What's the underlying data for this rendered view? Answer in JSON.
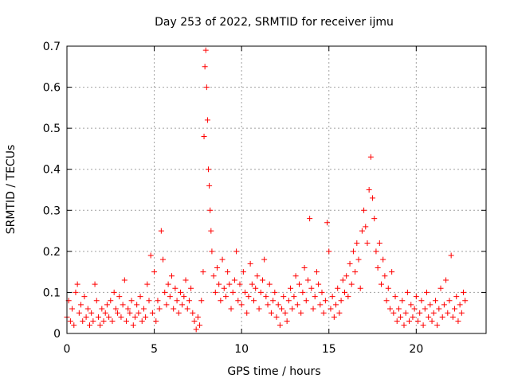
{
  "chart_data": {
    "type": "scatter",
    "title": "Day 253 of 2022, SRMTID for receiver ijmu",
    "xlabel": "GPS time / hours",
    "ylabel": "SRMTID / TECUs",
    "xlim": [
      0,
      24
    ],
    "ylim": [
      0,
      0.7
    ],
    "xticks": [
      0,
      5,
      10,
      15,
      20
    ],
    "xtick_labels": [
      "0",
      "5",
      "10",
      "15",
      "20"
    ],
    "yticks": [
      0,
      0.1,
      0.2,
      0.3,
      0.4,
      0.5,
      0.6,
      0.7
    ],
    "ytick_labels": [
      "0",
      "0.1",
      "0.2",
      "0.3",
      "0.4",
      "0.5",
      "0.6",
      "0.7"
    ],
    "grid": true,
    "marker": "+",
    "color": "#ff0000",
    "series": [
      {
        "name": "SRMTID",
        "points": [
          [
            0.0,
            0.04
          ],
          [
            0.1,
            0.08
          ],
          [
            0.2,
            0.03
          ],
          [
            0.3,
            0.06
          ],
          [
            0.4,
            0.02
          ],
          [
            0.5,
            0.1
          ],
          [
            0.6,
            0.12
          ],
          [
            0.7,
            0.05
          ],
          [
            0.8,
            0.07
          ],
          [
            0.9,
            0.03
          ],
          [
            1.0,
            0.09
          ],
          [
            1.1,
            0.04
          ],
          [
            1.2,
            0.06
          ],
          [
            1.3,
            0.02
          ],
          [
            1.4,
            0.05
          ],
          [
            1.5,
            0.03
          ],
          [
            1.6,
            0.12
          ],
          [
            1.7,
            0.08
          ],
          [
            1.8,
            0.04
          ],
          [
            1.9,
            0.02
          ],
          [
            2.0,
            0.06
          ],
          [
            2.1,
            0.03
          ],
          [
            2.2,
            0.05
          ],
          [
            2.3,
            0.07
          ],
          [
            2.4,
            0.04
          ],
          [
            2.5,
            0.08
          ],
          [
            2.6,
            0.03
          ],
          [
            2.7,
            0.1
          ],
          [
            2.8,
            0.06
          ],
          [
            2.9,
            0.05
          ],
          [
            3.0,
            0.09
          ],
          [
            3.1,
            0.04
          ],
          [
            3.2,
            0.07
          ],
          [
            3.3,
            0.13
          ],
          [
            3.4,
            0.03
          ],
          [
            3.5,
            0.06
          ],
          [
            3.6,
            0.05
          ],
          [
            3.7,
            0.08
          ],
          [
            3.8,
            0.02
          ],
          [
            3.9,
            0.04
          ],
          [
            4.0,
            0.07
          ],
          [
            4.1,
            0.05
          ],
          [
            4.2,
            0.09
          ],
          [
            4.3,
            0.03
          ],
          [
            4.4,
            0.06
          ],
          [
            4.5,
            0.04
          ],
          [
            4.6,
            0.12
          ],
          [
            4.7,
            0.08
          ],
          [
            4.8,
            0.19
          ],
          [
            4.9,
            0.05
          ],
          [
            5.0,
            0.15
          ],
          [
            5.1,
            0.03
          ],
          [
            5.2,
            0.08
          ],
          [
            5.3,
            0.06
          ],
          [
            5.4,
            0.25
          ],
          [
            5.5,
            0.18
          ],
          [
            5.6,
            0.1
          ],
          [
            5.7,
            0.07
          ],
          [
            5.8,
            0.12
          ],
          [
            5.9,
            0.09
          ],
          [
            6.0,
            0.14
          ],
          [
            6.1,
            0.06
          ],
          [
            6.2,
            0.11
          ],
          [
            6.3,
            0.08
          ],
          [
            6.4,
            0.05
          ],
          [
            6.5,
            0.1
          ],
          [
            6.6,
            0.07
          ],
          [
            6.7,
            0.09
          ],
          [
            6.8,
            0.13
          ],
          [
            6.9,
            0.06
          ],
          [
            7.0,
            0.08
          ],
          [
            7.1,
            0.11
          ],
          [
            7.2,
            0.05
          ],
          [
            7.3,
            0.03
          ],
          [
            7.4,
            0.01
          ],
          [
            7.5,
            0.04
          ],
          [
            7.6,
            0.02
          ],
          [
            7.7,
            0.08
          ],
          [
            7.8,
            0.15
          ],
          [
            7.85,
            0.48
          ],
          [
            7.9,
            0.65
          ],
          [
            7.95,
            0.69
          ],
          [
            8.0,
            0.6
          ],
          [
            8.05,
            0.52
          ],
          [
            8.1,
            0.4
          ],
          [
            8.15,
            0.36
          ],
          [
            8.2,
            0.3
          ],
          [
            8.25,
            0.25
          ],
          [
            8.3,
            0.2
          ],
          [
            8.4,
            0.14
          ],
          [
            8.5,
            0.1
          ],
          [
            8.6,
            0.16
          ],
          [
            8.7,
            0.12
          ],
          [
            8.8,
            0.08
          ],
          [
            8.9,
            0.18
          ],
          [
            9.0,
            0.11
          ],
          [
            9.1,
            0.09
          ],
          [
            9.2,
            0.15
          ],
          [
            9.3,
            0.12
          ],
          [
            9.4,
            0.06
          ],
          [
            9.5,
            0.1
          ],
          [
            9.6,
            0.13
          ],
          [
            9.7,
            0.2
          ],
          [
            9.8,
            0.08
          ],
          [
            9.9,
            0.12
          ],
          [
            10.0,
            0.07
          ],
          [
            10.1,
            0.15
          ],
          [
            10.2,
            0.1
          ],
          [
            10.3,
            0.05
          ],
          [
            10.4,
            0.09
          ],
          [
            10.5,
            0.17
          ],
          [
            10.6,
            0.12
          ],
          [
            10.7,
            0.08
          ],
          [
            10.8,
            0.11
          ],
          [
            10.9,
            0.14
          ],
          [
            11.0,
            0.06
          ],
          [
            11.1,
            0.1
          ],
          [
            11.2,
            0.13
          ],
          [
            11.3,
            0.18
          ],
          [
            11.4,
            0.09
          ],
          [
            11.5,
            0.07
          ],
          [
            11.6,
            0.12
          ],
          [
            11.7,
            0.05
          ],
          [
            11.8,
            0.08
          ],
          [
            11.9,
            0.1
          ],
          [
            12.0,
            0.04
          ],
          [
            12.1,
            0.07
          ],
          [
            12.2,
            0.02
          ],
          [
            12.3,
            0.06
          ],
          [
            12.4,
            0.09
          ],
          [
            12.5,
            0.05
          ],
          [
            12.6,
            0.03
          ],
          [
            12.7,
            0.08
          ],
          [
            12.8,
            0.11
          ],
          [
            12.9,
            0.06
          ],
          [
            13.0,
            0.09
          ],
          [
            13.1,
            0.14
          ],
          [
            13.2,
            0.07
          ],
          [
            13.3,
            0.12
          ],
          [
            13.4,
            0.05
          ],
          [
            13.5,
            0.1
          ],
          [
            13.6,
            0.16
          ],
          [
            13.7,
            0.08
          ],
          [
            13.8,
            0.13
          ],
          [
            13.9,
            0.28
          ],
          [
            14.0,
            0.11
          ],
          [
            14.1,
            0.06
          ],
          [
            14.2,
            0.09
          ],
          [
            14.3,
            0.15
          ],
          [
            14.4,
            0.12
          ],
          [
            14.5,
            0.07
          ],
          [
            14.6,
            0.1
          ],
          [
            14.7,
            0.05
          ],
          [
            14.8,
            0.08
          ],
          [
            14.9,
            0.27
          ],
          [
            15.0,
            0.2
          ],
          [
            15.1,
            0.06
          ],
          [
            15.2,
            0.09
          ],
          [
            15.3,
            0.04
          ],
          [
            15.4,
            0.07
          ],
          [
            15.5,
            0.11
          ],
          [
            15.6,
            0.05
          ],
          [
            15.7,
            0.08
          ],
          [
            15.8,
            0.13
          ],
          [
            15.9,
            0.1
          ],
          [
            16.0,
            0.14
          ],
          [
            16.1,
            0.09
          ],
          [
            16.2,
            0.17
          ],
          [
            16.3,
            0.12
          ],
          [
            16.4,
            0.2
          ],
          [
            16.5,
            0.15
          ],
          [
            16.6,
            0.22
          ],
          [
            16.7,
            0.18
          ],
          [
            16.8,
            0.11
          ],
          [
            16.9,
            0.25
          ],
          [
            17.0,
            0.3
          ],
          [
            17.1,
            0.26
          ],
          [
            17.2,
            0.22
          ],
          [
            17.3,
            0.35
          ],
          [
            17.4,
            0.43
          ],
          [
            17.5,
            0.33
          ],
          [
            17.6,
            0.28
          ],
          [
            17.7,
            0.2
          ],
          [
            17.8,
            0.16
          ],
          [
            17.9,
            0.22
          ],
          [
            18.0,
            0.12
          ],
          [
            18.1,
            0.18
          ],
          [
            18.2,
            0.14
          ],
          [
            18.3,
            0.08
          ],
          [
            18.4,
            0.11
          ],
          [
            18.5,
            0.06
          ],
          [
            18.6,
            0.15
          ],
          [
            18.7,
            0.05
          ],
          [
            18.8,
            0.09
          ],
          [
            18.9,
            0.03
          ],
          [
            19.0,
            0.06
          ],
          [
            19.1,
            0.04
          ],
          [
            19.2,
            0.08
          ],
          [
            19.3,
            0.02
          ],
          [
            19.4,
            0.05
          ],
          [
            19.5,
            0.1
          ],
          [
            19.6,
            0.03
          ],
          [
            19.7,
            0.07
          ],
          [
            19.8,
            0.04
          ],
          [
            19.9,
            0.06
          ],
          [
            20.0,
            0.09
          ],
          [
            20.1,
            0.03
          ],
          [
            20.2,
            0.05
          ],
          [
            20.3,
            0.08
          ],
          [
            20.4,
            0.02
          ],
          [
            20.5,
            0.06
          ],
          [
            20.6,
            0.1
          ],
          [
            20.7,
            0.04
          ],
          [
            20.8,
            0.07
          ],
          [
            20.9,
            0.03
          ],
          [
            21.0,
            0.05
          ],
          [
            21.1,
            0.08
          ],
          [
            21.2,
            0.02
          ],
          [
            21.3,
            0.06
          ],
          [
            21.4,
            0.11
          ],
          [
            21.5,
            0.04
          ],
          [
            21.6,
            0.07
          ],
          [
            21.7,
            0.13
          ],
          [
            21.8,
            0.05
          ],
          [
            21.9,
            0.08
          ],
          [
            22.0,
            0.19
          ],
          [
            22.1,
            0.04
          ],
          [
            22.2,
            0.06
          ],
          [
            22.3,
            0.09
          ],
          [
            22.4,
            0.03
          ],
          [
            22.5,
            0.07
          ],
          [
            22.6,
            0.05
          ],
          [
            22.7,
            0.1
          ],
          [
            22.8,
            0.08
          ]
        ]
      }
    ]
  }
}
